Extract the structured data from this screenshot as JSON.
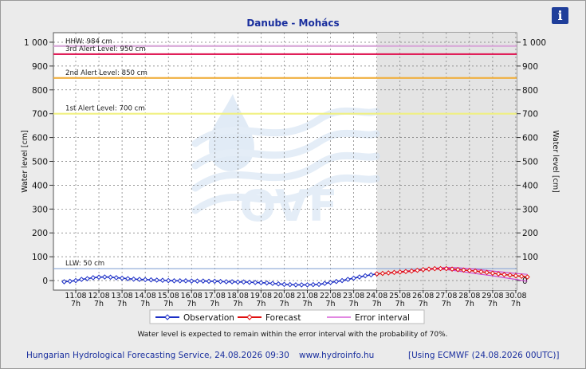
{
  "title": "Danube - Mohács",
  "info_icon": "i",
  "chart_data": {
    "type": "line",
    "ylabel_left": "Water level [cm]",
    "ylabel_right": "Water level [cm]",
    "ylim": [
      -40,
      1040
    ],
    "yticks": [
      0,
      100,
      200,
      300,
      400,
      500,
      600,
      700,
      800,
      900,
      1000
    ],
    "ytick_labels": [
      "0",
      "100",
      "200",
      "300",
      "400",
      "500",
      "600",
      "700",
      "800",
      "900",
      "1 000"
    ],
    "xlim": [
      0,
      20
    ],
    "xticks": [
      {
        "date": "11.08",
        "hour": "7h"
      },
      {
        "date": "12.08",
        "hour": "7h"
      },
      {
        "date": "13.08",
        "hour": "7h"
      },
      {
        "date": "14.08",
        "hour": "7h"
      },
      {
        "date": "15.08",
        "hour": "7h"
      },
      {
        "date": "16.08",
        "hour": "7h"
      },
      {
        "date": "17.08",
        "hour": "7h"
      },
      {
        "date": "18.08",
        "hour": "7h"
      },
      {
        "date": "19.08",
        "hour": "7h"
      },
      {
        "date": "20.08",
        "hour": "7h"
      },
      {
        "date": "21.08",
        "hour": "7h"
      },
      {
        "date": "22.08",
        "hour": "7h"
      },
      {
        "date": "23.08",
        "hour": "7h"
      },
      {
        "date": "24.08",
        "hour": "7h"
      },
      {
        "date": "25.08",
        "hour": "7h"
      },
      {
        "date": "26.08",
        "hour": "7h"
      },
      {
        "date": "27.08",
        "hour": "7h"
      },
      {
        "date": "28.08",
        "hour": "7h"
      },
      {
        "date": "29.08",
        "hour": "7h"
      },
      {
        "date": "30.08",
        "hour": "7h"
      }
    ],
    "forecast_start": 13,
    "reference_lines": [
      {
        "label": "HHW: 984 cm",
        "value": 984,
        "color": "#d8a8d8"
      },
      {
        "label": "3rd Alert Level: 950 cm",
        "value": 950,
        "color": "#e0205a"
      },
      {
        "label": "2nd Alert Level: 850 cm",
        "value": 850,
        "color": "#f0b040"
      },
      {
        "label": "1st Alert Level: 700 cm",
        "value": 700,
        "color": "#f0f080"
      },
      {
        "label": "LLW: 50 cm",
        "value": 50,
        "color": "#8aa6d6"
      }
    ],
    "series": [
      {
        "name": "Observation",
        "color": "#1c2fc6",
        "x": [
          -0.5,
          -0.25,
          0,
          0.25,
          0.5,
          0.75,
          1,
          1.25,
          1.5,
          1.75,
          2,
          2.25,
          2.5,
          2.75,
          3,
          3.25,
          3.5,
          3.75,
          4,
          4.25,
          4.5,
          4.75,
          5,
          5.25,
          5.5,
          5.75,
          6,
          6.25,
          6.5,
          6.75,
          7,
          7.25,
          7.5,
          7.75,
          8,
          8.25,
          8.5,
          8.75,
          9,
          9.25,
          9.5,
          9.75,
          10,
          10.25,
          10.5,
          10.75,
          11,
          11.25,
          11.5,
          11.75,
          12,
          12.25,
          12.5,
          12.75,
          13
        ],
        "y": [
          -5,
          -3,
          0,
          5,
          8,
          12,
          14,
          15,
          14,
          12,
          10,
          8,
          6,
          5,
          4,
          3,
          2,
          1,
          0,
          -1,
          -1,
          -1,
          -2,
          -2,
          -2,
          -3,
          -3,
          -4,
          -5,
          -5,
          -6,
          -6,
          -7,
          -8,
          -9,
          -10,
          -12,
          -14,
          -16,
          -17,
          -18,
          -18,
          -18,
          -17,
          -16,
          -12,
          -8,
          -4,
          0,
          5,
          10,
          15,
          20,
          24,
          28
        ]
      },
      {
        "name": "Forecast",
        "color": "#e01010",
        "x": [
          13,
          13.25,
          13.5,
          13.75,
          14,
          14.25,
          14.5,
          14.75,
          15,
          15.25,
          15.5,
          15.75,
          16,
          16.25,
          16.5,
          16.75,
          17,
          17.25,
          17.5,
          17.75,
          18,
          18.25,
          18.5,
          18.75,
          19,
          19.25,
          19.5
        ],
        "y": [
          28,
          30,
          32,
          34,
          36,
          38,
          40,
          43,
          46,
          48,
          50,
          50,
          50,
          48,
          46,
          44,
          42,
          40,
          37,
          34,
          31,
          28,
          25,
          23,
          20,
          18,
          15
        ]
      },
      {
        "name": "Error interval",
        "color": "#d040d0",
        "x": [
          13,
          13.5,
          14,
          14.5,
          15,
          15.5,
          16,
          16.5,
          17,
          17.5,
          18,
          18.5,
          19,
          19.5
        ],
        "upper": [
          28,
          33,
          38,
          42,
          48,
          52,
          55,
          54,
          50,
          45,
          40,
          35,
          30,
          26
        ],
        "lower": [
          28,
          31,
          34,
          38,
          44,
          48,
          46,
          40,
          33,
          26,
          20,
          12,
          5,
          -3
        ]
      }
    ],
    "legend": [
      "Observation",
      "Forecast",
      "Error interval"
    ],
    "legend_placement": "bottom",
    "grid": true,
    "note": "Water level is expected to remain within the error interval with the probability of 70%."
  },
  "watermark_text": "OVF",
  "footer": {
    "left": "Hungarian Hydrological Forecasting Service, 24.08.2026 09:30",
    "middle": "www.hydroinfo.hu",
    "right": "[Using ECMWF (24.08.2026  00UTC)]"
  }
}
